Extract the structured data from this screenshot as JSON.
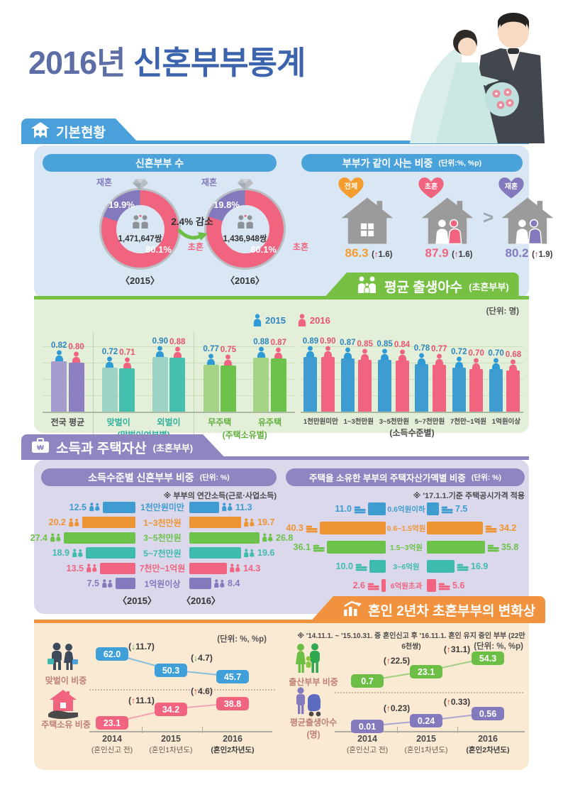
{
  "page": {
    "title_year": "2016년",
    "title_main": "신혼부부통계"
  },
  "banners": {
    "basic": {
      "label": "기본현황"
    },
    "births": {
      "label": "평균 출생아수",
      "sub": "(초혼부부)"
    },
    "income": {
      "label": "소득과 주택자산",
      "sub": "(초혼부부)"
    },
    "change2": {
      "label": "혼인 2년차 초혼부부의 변화상"
    }
  },
  "couples_count": {
    "header": "신혼부부 수",
    "change": "2.4% 감소",
    "donuts": [
      {
        "caption": "〈2015〉",
        "total": "1,471,647쌍",
        "first_label": "초혼",
        "first_pct": "80.1%",
        "re_label": "재혼",
        "re_pct": "19.9%",
        "re_value": 19.9
      },
      {
        "caption": "〈2016〉",
        "total": "1,436,948쌍",
        "first_label": "초혼",
        "first_pct": "80.1%",
        "re_label": "재혼",
        "re_pct": "19.8%",
        "re_value": 19.8
      }
    ],
    "colors": {
      "first": "#F0647F",
      "re": "#8379BD"
    }
  },
  "living_share": {
    "header": "부부가 같이 사는 비중",
    "unit": "(단위:%, %p)",
    "gt": ">",
    "items": [
      {
        "label": "전체",
        "value": "86.3",
        "delta": "1.6",
        "dir": "up",
        "color": "#F59C2F",
        "couple": ""
      },
      {
        "label": "초혼",
        "value": "87.9",
        "delta": "1.6",
        "dir": "up",
        "color": "#F0647F",
        "couple": "#F0647F"
      },
      {
        "label": "재혼",
        "value": "80.2",
        "delta": "1.9",
        "dir": "up",
        "color": "#8379BD",
        "couple": "#8379BD"
      }
    ]
  },
  "births": {
    "unit": "(단위: 명)",
    "legend": [
      {
        "label": "2015",
        "color": "#2E9BD6",
        "text": "#2E86C1"
      },
      {
        "label": "2016",
        "color": "#F0647F",
        "text": "#E8536D"
      }
    ],
    "left_groups": [
      {
        "cats": [
          {
            "label": "전국 평균",
            "v": [
              "0.82",
              "0.80"
            ]
          }
        ],
        "sub": "",
        "colors": [
          "#A79CCE",
          "#8D7FC2"
        ],
        "label_color": "#4a4a4a"
      },
      {
        "cats": [
          {
            "label": "맞벌이",
            "v": [
              "0.72",
              "0.71"
            ]
          },
          {
            "label": "외벌이",
            "v": [
              "0.90",
              "0.88"
            ]
          }
        ],
        "sub": "(맞벌이여부별)",
        "colors": [
          "#9CD3C6",
          "#45C0AE"
        ],
        "label_color": "#2FAF9E"
      },
      {
        "cats": [
          {
            "label": "무주택",
            "v": [
              "0.77",
              "0.75"
            ]
          },
          {
            "label": "유주택",
            "v": [
              "0.88",
              "0.87"
            ]
          }
        ],
        "sub": "(주택소유별)",
        "colors": [
          "#A5D487",
          "#6CC24A"
        ],
        "label_color": "#5FAE3C"
      }
    ],
    "right_groups": [
      {
        "cats": [
          {
            "label": "1천만원미만",
            "v": [
              "0.89",
              "0.90"
            ]
          },
          {
            "label": "1~3천만원",
            "v": [
              "0.87",
              "0.85"
            ]
          },
          {
            "label": "3~5천만원",
            "v": [
              "0.85",
              "0.84"
            ]
          },
          {
            "label": "5~7천만원",
            "v": [
              "0.78",
              "0.77"
            ]
          },
          {
            "label": "7천만~1억원",
            "v": [
              "0.72",
              "0.70"
            ]
          },
          {
            "label": "1억원이상",
            "v": [
              "0.70",
              "0.68"
            ]
          }
        ],
        "sub": "(소득수준별)",
        "colors": [
          "#3E9CD0",
          "#F0647F"
        ],
        "label_color": "#4a4a4a"
      }
    ]
  },
  "income_panel": {
    "left": {
      "header": "소득수준별 신혼부부 비중",
      "unit": "(단위: %)",
      "note": "※ 부부의 연간소득(근로·사업소득)",
      "captions": [
        "〈2015〉",
        "〈2016〉"
      ],
      "rows": [
        {
          "label": "1천만원미만",
          "v15": "12.5",
          "v16": "11.3",
          "color": "#3E9CD0"
        },
        {
          "label": "1~3천만원",
          "v15": "20.2",
          "v16": "19.7",
          "color": "#EF9432"
        },
        {
          "label": "3~5천만원",
          "v15": "27.4",
          "v16": "26.8",
          "color": "#6CC24A"
        },
        {
          "label": "5~7천만원",
          "v15": "18.9",
          "v16": "19.6",
          "color": "#3DBCAD"
        },
        {
          "label": "7천만~1억원",
          "v15": "13.5",
          "v16": "14.3",
          "color": "#F0647F"
        },
        {
          "label": "1억원이상",
          "v15": "7.5",
          "v16": "8.4",
          "color": "#8379BD"
        }
      ]
    },
    "right": {
      "header": "주택을 소유한 부부의 주택자산가액별 비중",
      "unit": "(단위: %)",
      "note": "※ '17.1.1.기준 주택공시가격 적용",
      "captions": [
        "〈2015〉",
        "〈2016〉"
      ],
      "rows": [
        {
          "label": "0.6억원이하",
          "v15": "11.0",
          "v16": "7.5",
          "color": "#3E9CD0"
        },
        {
          "label": "0.6~1.5억원",
          "v15": "40.3",
          "v16": "34.2",
          "color": "#EF9432"
        },
        {
          "label": "1.5~3억원",
          "v15": "36.1",
          "v16": "35.8",
          "color": "#6CC24A"
        },
        {
          "label": "3~6억원",
          "v15": "10.0",
          "v16": "16.9",
          "color": "#3DBCAD"
        },
        {
          "label": "6억원초과",
          "v15": "2.6",
          "v16": "5.6",
          "color": "#F0647F"
        }
      ]
    }
  },
  "change2": {
    "note": "※ '14.11.1. ~ '15.10.31. 중 혼인신고 후 '16.11.1. 혼인 유지 중인 부부 (22만 6천쌍)",
    "unit_left": "(단위: %, %p)",
    "unit_right": "(단위: %, %p)",
    "axis": {
      "years": [
        "2014",
        "2015",
        "2016"
      ],
      "subs": [
        "(혼인신고 전)",
        "(혼인1차년도)",
        "(혼인2차년도)"
      ]
    },
    "rows": [
      {
        "label": "맞벌이 비중",
        "label2": "",
        "icon": "dual-income",
        "color": "#3F9FD8",
        "line": "#86BFDE",
        "values": [
          "62.0",
          "50.3",
          "45.7"
        ],
        "deltas": [
          {
            "d": "11.7",
            "dir": "down"
          },
          {
            "d": "4.7",
            "dir": "down"
          }
        ]
      },
      {
        "label": "주택소유 비중",
        "label2": "",
        "icon": "home-own",
        "color": "#F06480",
        "line": "#F3A3B2",
        "values": [
          "23.1",
          "34.2",
          "38.8"
        ],
        "deltas": [
          {
            "d": "11.1",
            "dir": "up"
          },
          {
            "d": "4.6",
            "dir": "up"
          }
        ]
      },
      {
        "label": "출산부부 비중",
        "label2": "",
        "icon": "birth-couple",
        "color": "#6CBE45",
        "line": "#A2CF85",
        "values": [
          "0.7",
          "23.1",
          "54.3"
        ],
        "deltas": [
          {
            "d": "22.5",
            "dir": "up"
          },
          {
            "d": "31.1",
            "dir": "up"
          }
        ]
      },
      {
        "label": "평균출생아수",
        "label2": "(명)",
        "icon": "stroller",
        "color": "#8379BD",
        "line": "#ACA5D1",
        "values": [
          "0.01",
          "0.24",
          "0.56"
        ],
        "deltas": [
          {
            "d": "0.23",
            "dir": "up"
          },
          {
            "d": "0.33",
            "dir": "up"
          }
        ]
      }
    ]
  },
  "chart_data": [
    {
      "type": "pie",
      "title": "신혼부부 수",
      "series": [
        {
          "name": "2015",
          "labels": [
            "초혼",
            "재혼"
          ],
          "values": [
            80.1,
            19.9
          ],
          "total": "1,471,647쌍"
        },
        {
          "name": "2016",
          "labels": [
            "초혼",
            "재혼"
          ],
          "values": [
            80.1,
            19.8
          ],
          "total": "1,436,948쌍"
        }
      ],
      "annotation": "2.4% 감소"
    },
    {
      "type": "bar",
      "title": "부부가 같이 사는 비중",
      "unit": "%, %p",
      "categories": [
        "전체",
        "초혼",
        "재혼"
      ],
      "values": [
        86.3,
        87.9,
        80.2
      ],
      "deltas": [
        1.6,
        1.6,
        1.9
      ]
    },
    {
      "type": "bar",
      "title": "평균 출생아수(초혼부부)",
      "unit": "명",
      "categories": [
        "전국 평균",
        "맞벌이",
        "외벌이",
        "무주택",
        "유주택"
      ],
      "series": [
        {
          "name": "2015",
          "values": [
            0.82,
            0.72,
            0.9,
            0.77,
            0.88
          ]
        },
        {
          "name": "2016",
          "values": [
            0.8,
            0.71,
            0.88,
            0.75,
            0.87
          ]
        }
      ],
      "group_labels": [
        "",
        "(맞벌이여부별)",
        "(주택소유별)"
      ]
    },
    {
      "type": "bar",
      "title": "평균 출생아수(초혼부부) 소득수준별",
      "unit": "명",
      "categories": [
        "1천만원미만",
        "1~3천만원",
        "3~5천만원",
        "5~7천만원",
        "7천만~1억원",
        "1억원이상"
      ],
      "series": [
        {
          "name": "2015",
          "values": [
            0.89,
            0.87,
            0.85,
            0.78,
            0.72,
            0.7
          ]
        },
        {
          "name": "2016",
          "values": [
            0.9,
            0.85,
            0.84,
            0.77,
            0.7,
            0.68
          ]
        }
      ]
    },
    {
      "type": "bar",
      "title": "소득수준별 신혼부부 비중",
      "unit": "%",
      "categories": [
        "1천만원미만",
        "1~3천만원",
        "3~5천만원",
        "5~7천만원",
        "7천만~1억원",
        "1억원이상"
      ],
      "series": [
        {
          "name": "2015",
          "values": [
            12.5,
            20.2,
            27.4,
            18.9,
            13.5,
            7.5
          ]
        },
        {
          "name": "2016",
          "values": [
            11.3,
            19.7,
            26.8,
            19.6,
            14.3,
            8.4
          ]
        }
      ]
    },
    {
      "type": "bar",
      "title": "주택을 소유한 부부의 주택자산가액별 비중",
      "unit": "%",
      "categories": [
        "0.6억원이하",
        "0.6~1.5억원",
        "1.5~3억원",
        "3~6억원",
        "6억원초과"
      ],
      "series": [
        {
          "name": "2015",
          "values": [
            11.0,
            40.3,
            36.1,
            10.0,
            2.6
          ]
        },
        {
          "name": "2016",
          "values": [
            7.5,
            34.2,
            35.8,
            16.9,
            5.6
          ]
        }
      ]
    },
    {
      "type": "line",
      "title": "혼인 2년차 초혼부부의 변화상",
      "unit": "%, %p",
      "x": [
        "2014 (혼인신고 전)",
        "2015 (혼인1차년도)",
        "2016 (혼인2차년도)"
      ],
      "series": [
        {
          "name": "맞벌이 비중",
          "values": [
            62.0,
            50.3,
            45.7
          ],
          "deltas": [
            -11.7,
            -4.7
          ]
        },
        {
          "name": "주택소유 비중",
          "values": [
            23.1,
            34.2,
            38.8
          ],
          "deltas": [
            11.1,
            4.6
          ]
        },
        {
          "name": "출산부부 비중",
          "values": [
            0.7,
            23.1,
            54.3
          ],
          "deltas": [
            22.5,
            31.1
          ]
        },
        {
          "name": "평균출생아수(명)",
          "values": [
            0.01,
            0.24,
            0.56
          ],
          "deltas": [
            0.23,
            0.33
          ]
        }
      ]
    }
  ]
}
